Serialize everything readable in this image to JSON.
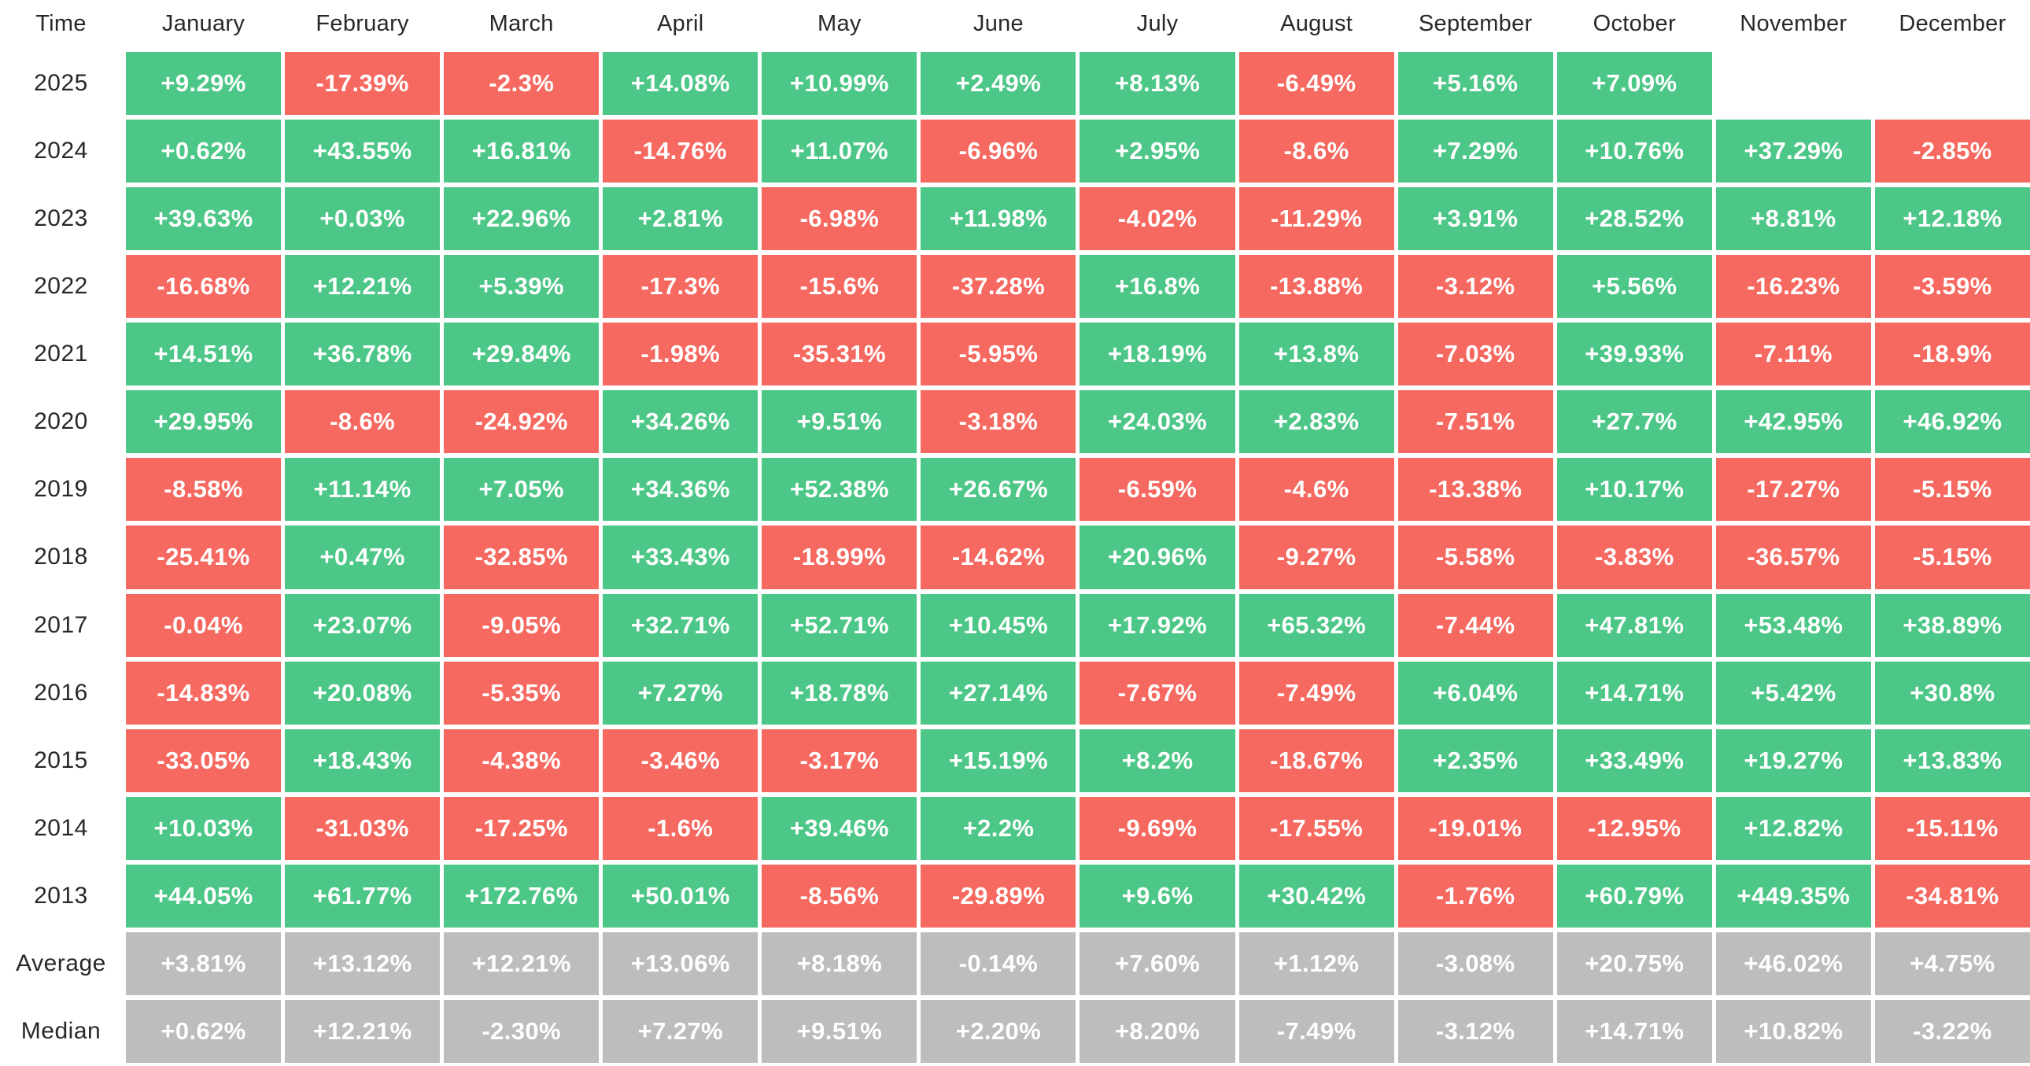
{
  "colors": {
    "positive": "#4dc787",
    "negative": "#f56960",
    "summary": "#bdbdbd",
    "text_dark": "#26282b",
    "text_light": "#ffffff",
    "background": "#ffffff"
  },
  "chart_data": {
    "type": "heatmap",
    "corner_label": "Time",
    "value_unit": "%",
    "x_categories": [
      "January",
      "February",
      "March",
      "April",
      "May",
      "June",
      "July",
      "August",
      "September",
      "October",
      "November",
      "December"
    ],
    "rows": [
      {
        "label": "2025",
        "type": "year",
        "values": [
          "+9.29%",
          "-17.39%",
          "-2.3%",
          "+14.08%",
          "+10.99%",
          "+2.49%",
          "+8.13%",
          "-6.49%",
          "+5.16%",
          "+7.09%",
          "",
          ""
        ]
      },
      {
        "label": "2024",
        "type": "year",
        "values": [
          "+0.62%",
          "+43.55%",
          "+16.81%",
          "-14.76%",
          "+11.07%",
          "-6.96%",
          "+2.95%",
          "-8.6%",
          "+7.29%",
          "+10.76%",
          "+37.29%",
          "-2.85%"
        ]
      },
      {
        "label": "2023",
        "type": "year",
        "values": [
          "+39.63%",
          "+0.03%",
          "+22.96%",
          "+2.81%",
          "-6.98%",
          "+11.98%",
          "-4.02%",
          "-11.29%",
          "+3.91%",
          "+28.52%",
          "+8.81%",
          "+12.18%"
        ]
      },
      {
        "label": "2022",
        "type": "year",
        "values": [
          "-16.68%",
          "+12.21%",
          "+5.39%",
          "-17.3%",
          "-15.6%",
          "-37.28%",
          "+16.8%",
          "-13.88%",
          "-3.12%",
          "+5.56%",
          "-16.23%",
          "-3.59%"
        ]
      },
      {
        "label": "2021",
        "type": "year",
        "values": [
          "+14.51%",
          "+36.78%",
          "+29.84%",
          "-1.98%",
          "-35.31%",
          "-5.95%",
          "+18.19%",
          "+13.8%",
          "-7.03%",
          "+39.93%",
          "-7.11%",
          "-18.9%"
        ]
      },
      {
        "label": "2020",
        "type": "year",
        "values": [
          "+29.95%",
          "-8.6%",
          "-24.92%",
          "+34.26%",
          "+9.51%",
          "-3.18%",
          "+24.03%",
          "+2.83%",
          "-7.51%",
          "+27.7%",
          "+42.95%",
          "+46.92%"
        ]
      },
      {
        "label": "2019",
        "type": "year",
        "values": [
          "-8.58%",
          "+11.14%",
          "+7.05%",
          "+34.36%",
          "+52.38%",
          "+26.67%",
          "-6.59%",
          "-4.6%",
          "-13.38%",
          "+10.17%",
          "-17.27%",
          "-5.15%"
        ]
      },
      {
        "label": "2018",
        "type": "year",
        "values": [
          "-25.41%",
          "+0.47%",
          "-32.85%",
          "+33.43%",
          "-18.99%",
          "-14.62%",
          "+20.96%",
          "-9.27%",
          "-5.58%",
          "-3.83%",
          "-36.57%",
          "-5.15%"
        ]
      },
      {
        "label": "2017",
        "type": "year",
        "values": [
          "-0.04%",
          "+23.07%",
          "-9.05%",
          "+32.71%",
          "+52.71%",
          "+10.45%",
          "+17.92%",
          "+65.32%",
          "-7.44%",
          "+47.81%",
          "+53.48%",
          "+38.89%"
        ]
      },
      {
        "label": "2016",
        "type": "year",
        "values": [
          "-14.83%",
          "+20.08%",
          "-5.35%",
          "+7.27%",
          "+18.78%",
          "+27.14%",
          "-7.67%",
          "-7.49%",
          "+6.04%",
          "+14.71%",
          "+5.42%",
          "+30.8%"
        ]
      },
      {
        "label": "2015",
        "type": "year",
        "values": [
          "-33.05%",
          "+18.43%",
          "-4.38%",
          "-3.46%",
          "-3.17%",
          "+15.19%",
          "+8.2%",
          "-18.67%",
          "+2.35%",
          "+33.49%",
          "+19.27%",
          "+13.83%"
        ]
      },
      {
        "label": "2014",
        "type": "year",
        "values": [
          "+10.03%",
          "-31.03%",
          "-17.25%",
          "-1.6%",
          "+39.46%",
          "+2.2%",
          "-9.69%",
          "-17.55%",
          "-19.01%",
          "-12.95%",
          "+12.82%",
          "-15.11%"
        ]
      },
      {
        "label": "2013",
        "type": "year",
        "values": [
          "+44.05%",
          "+61.77%",
          "+172.76%",
          "+50.01%",
          "-8.56%",
          "-29.89%",
          "+9.6%",
          "+30.42%",
          "-1.76%",
          "+60.79%",
          "+449.35%",
          "-34.81%"
        ]
      },
      {
        "label": "Average",
        "type": "summary",
        "values": [
          "+3.81%",
          "+13.12%",
          "+12.21%",
          "+13.06%",
          "+8.18%",
          "-0.14%",
          "+7.60%",
          "+1.12%",
          "-3.08%",
          "+20.75%",
          "+46.02%",
          "+4.75%"
        ]
      },
      {
        "label": "Median",
        "type": "summary",
        "values": [
          "+0.62%",
          "+12.21%",
          "-2.30%",
          "+7.27%",
          "+9.51%",
          "+2.20%",
          "+8.20%",
          "-7.49%",
          "-3.12%",
          "+14.71%",
          "+10.82%",
          "-3.22%"
        ]
      }
    ]
  }
}
